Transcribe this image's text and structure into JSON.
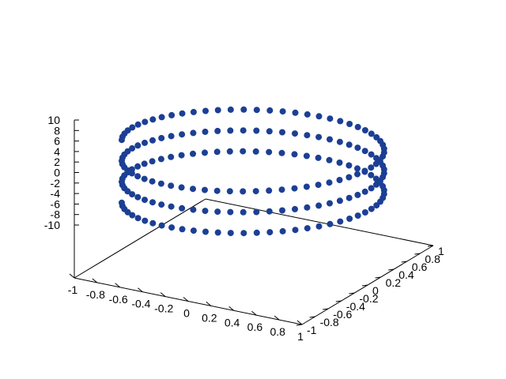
{
  "chart_data": {
    "type": "scatter",
    "projection": "3d",
    "title": "",
    "xlabel": "",
    "ylabel": "",
    "zlabel": "",
    "grid": false,
    "legend": "none",
    "marker": "filled-circle",
    "point_color": "#1c3f94",
    "xlim": [
      -1,
      1
    ],
    "ylim": [
      -1,
      1
    ],
    "zlim": [
      -10,
      10
    ],
    "x_ticks": [
      "-1",
      "-0.8",
      "-0.6",
      "-0.4",
      "-0.2",
      "0",
      "0.2",
      "0.4",
      "0.6",
      "0.8",
      "1"
    ],
    "y_ticks": [
      "-1",
      "-0.8",
      "-0.6",
      "-0.4",
      "-0.2",
      "0",
      "0.2",
      "0.4",
      "0.6",
      "0.8",
      "1"
    ],
    "z_ticks": [
      "-10",
      "-8",
      "-6",
      "-4",
      "-2",
      "0",
      "2",
      "4",
      "6",
      "8",
      "10"
    ],
    "series": [
      {
        "shape": "helix",
        "x": "cos(t)",
        "y": "sin(t)",
        "z": "t",
        "t_range": [
          -9.42,
          9.42
        ],
        "turns": 3,
        "point_count": 190
      }
    ]
  }
}
